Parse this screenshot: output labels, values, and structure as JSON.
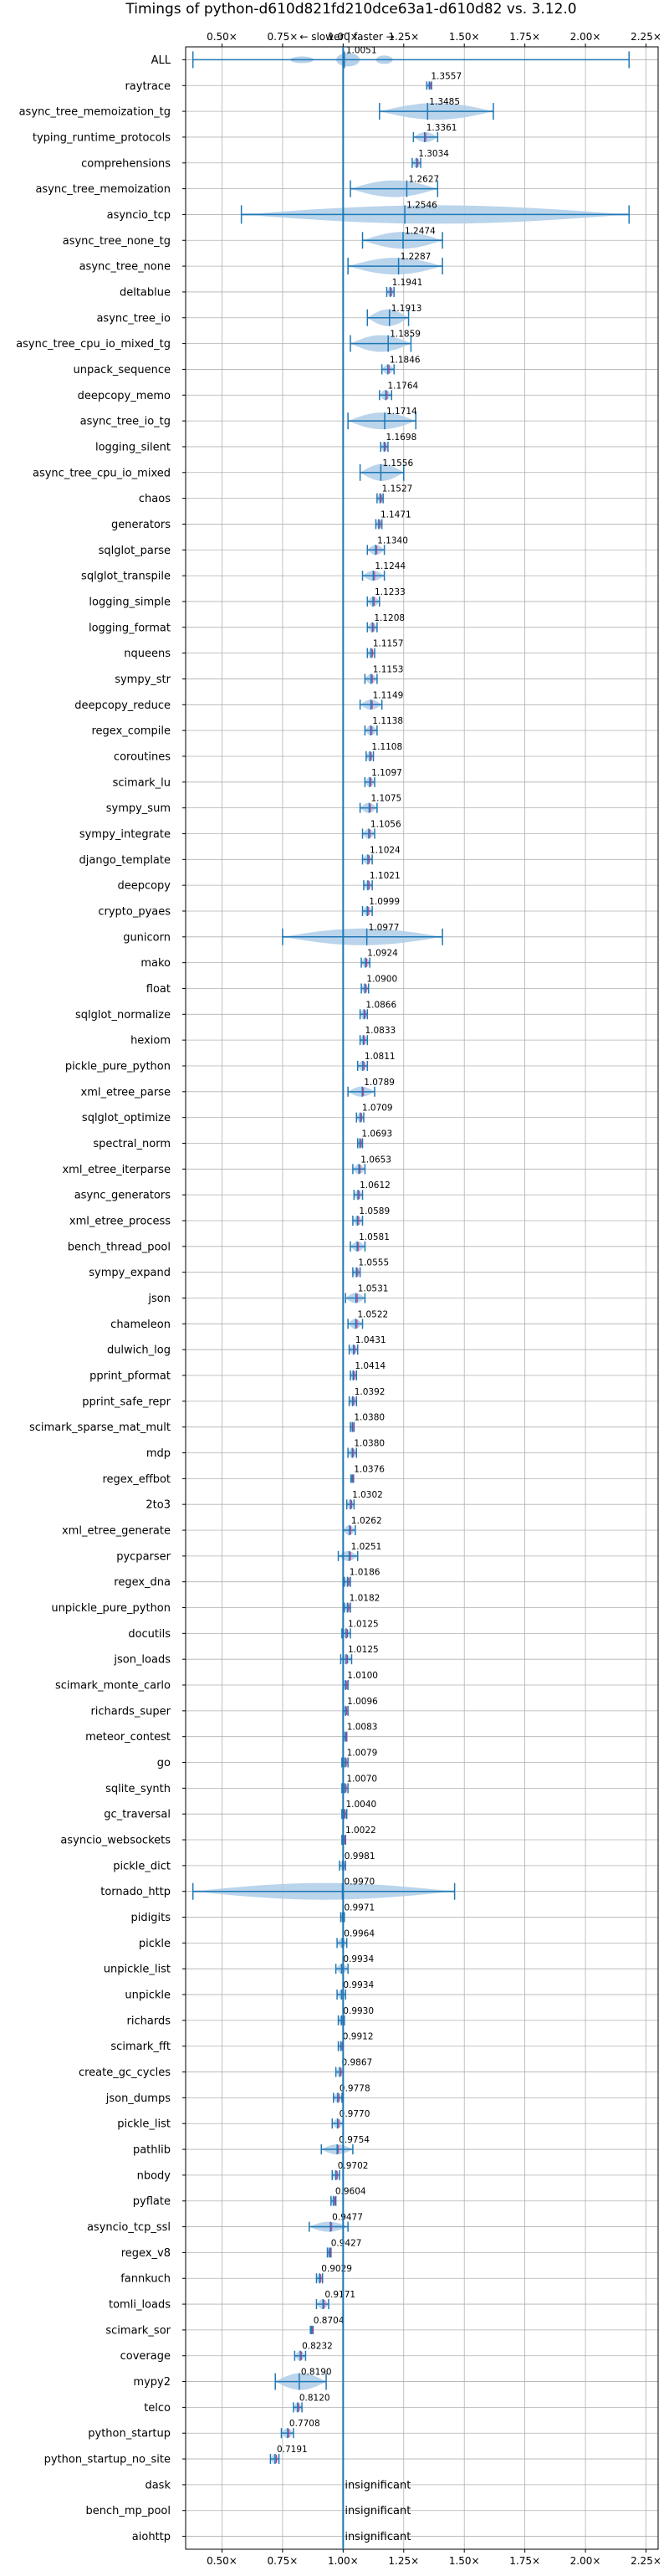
{
  "chart_data": {
    "type": "violin",
    "title": "Timings of python-d610d821fd210dce63a1-d610d82 vs. 3.12.0",
    "direction_label": "← slower | faster →",
    "xlim": [
      0.35,
      2.3
    ],
    "x_ticks": [
      0.5,
      0.75,
      1.0,
      1.25,
      1.5,
      1.75,
      2.0,
      2.25
    ],
    "x_tick_labels": [
      "0.50×",
      "0.75×",
      "1.00×",
      "1.25×",
      "1.50×",
      "1.75×",
      "2.00×",
      "2.25×"
    ],
    "reference_line": 1.0,
    "grid": true,
    "colors": {
      "violin": "#aecde8",
      "line": "#1f77b4",
      "median": "#d6277c",
      "grid": "#b0b0b0"
    },
    "benchmarks": [
      {
        "name": "ALL",
        "label": "1.0051",
        "value": 1.0051,
        "min": 0.38,
        "max": 2.18,
        "shape": "all"
      },
      {
        "name": "raytrace",
        "label": "1.3557",
        "value": 1.3557,
        "min": 1.345,
        "max": 1.365,
        "shape": "narrow"
      },
      {
        "name": "async_tree_memoization_tg",
        "label": "1.3485",
        "value": 1.3485,
        "min": 1.15,
        "max": 1.62,
        "shape": "wide"
      },
      {
        "name": "typing_runtime_protocols",
        "label": "1.3361",
        "value": 1.3361,
        "min": 1.29,
        "max": 1.39,
        "shape": "box"
      },
      {
        "name": "comprehensions",
        "label": "1.3034",
        "value": 1.3034,
        "min": 1.285,
        "max": 1.32,
        "shape": "box"
      },
      {
        "name": "async_tree_memoization",
        "label": "1.2627",
        "value": 1.2627,
        "min": 1.03,
        "max": 1.39,
        "shape": "wide"
      },
      {
        "name": "asyncio_tcp",
        "label": "1.2546",
        "value": 1.2546,
        "min": 0.58,
        "max": 2.18,
        "shape": "tcp"
      },
      {
        "name": "async_tree_none_tg",
        "label": "1.2474",
        "value": 1.2474,
        "min": 1.08,
        "max": 1.41,
        "shape": "wide"
      },
      {
        "name": "async_tree_none",
        "label": "1.2287",
        "value": 1.2287,
        "min": 1.02,
        "max": 1.41,
        "shape": "wide"
      },
      {
        "name": "deltablue",
        "label": "1.1941",
        "value": 1.1941,
        "min": 1.18,
        "max": 1.21,
        "shape": "box"
      },
      {
        "name": "async_tree_io",
        "label": "1.1913",
        "value": 1.1913,
        "min": 1.1,
        "max": 1.27,
        "shape": "wide"
      },
      {
        "name": "async_tree_cpu_io_mixed_tg",
        "label": "1.1859",
        "value": 1.1859,
        "min": 1.03,
        "max": 1.28,
        "shape": "wide"
      },
      {
        "name": "unpack_sequence",
        "label": "1.1846",
        "value": 1.1846,
        "min": 1.16,
        "max": 1.21,
        "shape": "box"
      },
      {
        "name": "deepcopy_memo",
        "label": "1.1764",
        "value": 1.1764,
        "min": 1.15,
        "max": 1.2,
        "shape": "box"
      },
      {
        "name": "async_tree_io_tg",
        "label": "1.1714",
        "value": 1.1714,
        "min": 1.02,
        "max": 1.3,
        "shape": "wide"
      },
      {
        "name": "logging_silent",
        "label": "1.1698",
        "value": 1.1698,
        "min": 1.155,
        "max": 1.185,
        "shape": "box"
      },
      {
        "name": "async_tree_cpu_io_mixed",
        "label": "1.1556",
        "value": 1.1556,
        "min": 1.07,
        "max": 1.25,
        "shape": "wide"
      },
      {
        "name": "chaos",
        "label": "1.1527",
        "value": 1.1527,
        "min": 1.14,
        "max": 1.165,
        "shape": "box"
      },
      {
        "name": "generators",
        "label": "1.1471",
        "value": 1.1471,
        "min": 1.135,
        "max": 1.16,
        "shape": "box"
      },
      {
        "name": "sqlglot_parse",
        "label": "1.1340",
        "value": 1.134,
        "min": 1.1,
        "max": 1.17,
        "shape": "box"
      },
      {
        "name": "sqlglot_transpile",
        "label": "1.1244",
        "value": 1.1244,
        "min": 1.08,
        "max": 1.17,
        "shape": "box"
      },
      {
        "name": "logging_simple",
        "label": "1.1233",
        "value": 1.1233,
        "min": 1.1,
        "max": 1.15,
        "shape": "box"
      },
      {
        "name": "logging_format",
        "label": "1.1208",
        "value": 1.1208,
        "min": 1.1,
        "max": 1.14,
        "shape": "box"
      },
      {
        "name": "nqueens",
        "label": "1.1157",
        "value": 1.1157,
        "min": 1.1,
        "max": 1.13,
        "shape": "box"
      },
      {
        "name": "sympy_str",
        "label": "1.1153",
        "value": 1.1153,
        "min": 1.09,
        "max": 1.14,
        "shape": "box"
      },
      {
        "name": "deepcopy_reduce",
        "label": "1.1149",
        "value": 1.1149,
        "min": 1.07,
        "max": 1.16,
        "shape": "box"
      },
      {
        "name": "regex_compile",
        "label": "1.1138",
        "value": 1.1138,
        "min": 1.09,
        "max": 1.14,
        "shape": "box"
      },
      {
        "name": "coroutines",
        "label": "1.1108",
        "value": 1.1108,
        "min": 1.095,
        "max": 1.125,
        "shape": "box"
      },
      {
        "name": "scimark_lu",
        "label": "1.1097",
        "value": 1.1097,
        "min": 1.09,
        "max": 1.13,
        "shape": "box"
      },
      {
        "name": "sympy_sum",
        "label": "1.1075",
        "value": 1.1075,
        "min": 1.07,
        "max": 1.14,
        "shape": "box"
      },
      {
        "name": "sympy_integrate",
        "label": "1.1056",
        "value": 1.1056,
        "min": 1.08,
        "max": 1.13,
        "shape": "box"
      },
      {
        "name": "django_template",
        "label": "1.1024",
        "value": 1.1024,
        "min": 1.08,
        "max": 1.12,
        "shape": "box"
      },
      {
        "name": "deepcopy",
        "label": "1.1021",
        "value": 1.1021,
        "min": 1.085,
        "max": 1.12,
        "shape": "box"
      },
      {
        "name": "crypto_pyaes",
        "label": "1.0999",
        "value": 1.0999,
        "min": 1.08,
        "max": 1.12,
        "shape": "box"
      },
      {
        "name": "gunicorn",
        "label": "1.0977",
        "value": 1.0977,
        "min": 0.75,
        "max": 1.41,
        "shape": "wide"
      },
      {
        "name": "mako",
        "label": "1.0924",
        "value": 1.0924,
        "min": 1.075,
        "max": 1.11,
        "shape": "box"
      },
      {
        "name": "float",
        "label": "1.0900",
        "value": 1.09,
        "min": 1.075,
        "max": 1.105,
        "shape": "box"
      },
      {
        "name": "sqlglot_normalize",
        "label": "1.0866",
        "value": 1.0866,
        "min": 1.07,
        "max": 1.1,
        "shape": "box"
      },
      {
        "name": "hexiom",
        "label": "1.0833",
        "value": 1.0833,
        "min": 1.07,
        "max": 1.1,
        "shape": "box"
      },
      {
        "name": "pickle_pure_python",
        "label": "1.0811",
        "value": 1.0811,
        "min": 1.06,
        "max": 1.1,
        "shape": "box"
      },
      {
        "name": "xml_etree_parse",
        "label": "1.0789",
        "value": 1.0789,
        "min": 1.02,
        "max": 1.13,
        "shape": "box"
      },
      {
        "name": "sqlglot_optimize",
        "label": "1.0709",
        "value": 1.0709,
        "min": 1.055,
        "max": 1.085,
        "shape": "box"
      },
      {
        "name": "spectral_norm",
        "label": "1.0693",
        "value": 1.0693,
        "min": 1.06,
        "max": 1.08,
        "shape": "box"
      },
      {
        "name": "xml_etree_iterparse",
        "label": "1.0653",
        "value": 1.0653,
        "min": 1.04,
        "max": 1.09,
        "shape": "box"
      },
      {
        "name": "async_generators",
        "label": "1.0612",
        "value": 1.0612,
        "min": 1.045,
        "max": 1.08,
        "shape": "box"
      },
      {
        "name": "xml_etree_process",
        "label": "1.0589",
        "value": 1.0589,
        "min": 1.04,
        "max": 1.08,
        "shape": "box"
      },
      {
        "name": "bench_thread_pool",
        "label": "1.0581",
        "value": 1.0581,
        "min": 1.03,
        "max": 1.09,
        "shape": "box"
      },
      {
        "name": "sympy_expand",
        "label": "1.0555",
        "value": 1.0555,
        "min": 1.04,
        "max": 1.07,
        "shape": "box"
      },
      {
        "name": "json",
        "label": "1.0531",
        "value": 1.0531,
        "min": 1.01,
        "max": 1.09,
        "shape": "box"
      },
      {
        "name": "chameleon",
        "label": "1.0522",
        "value": 1.0522,
        "min": 1.02,
        "max": 1.08,
        "shape": "box"
      },
      {
        "name": "dulwich_log",
        "label": "1.0431",
        "value": 1.0431,
        "min": 1.025,
        "max": 1.06,
        "shape": "box"
      },
      {
        "name": "pprint_pformat",
        "label": "1.0414",
        "value": 1.0414,
        "min": 1.03,
        "max": 1.055,
        "shape": "box"
      },
      {
        "name": "pprint_safe_repr",
        "label": "1.0392",
        "value": 1.0392,
        "min": 1.025,
        "max": 1.055,
        "shape": "box"
      },
      {
        "name": "scimark_sparse_mat_mult",
        "label": "1.0380",
        "value": 1.038,
        "min": 1.03,
        "max": 1.045,
        "shape": "box"
      },
      {
        "name": "mdp",
        "label": "1.0380",
        "value": 1.038,
        "min": 1.02,
        "max": 1.055,
        "shape": "box"
      },
      {
        "name": "regex_effbot",
        "label": "1.0376",
        "value": 1.0376,
        "min": 1.032,
        "max": 1.043,
        "shape": "narrow"
      },
      {
        "name": "2to3",
        "label": "1.0302",
        "value": 1.0302,
        "min": 1.015,
        "max": 1.045,
        "shape": "box"
      },
      {
        "name": "xml_etree_generate",
        "label": "1.0262",
        "value": 1.0262,
        "min": 1.0,
        "max": 1.05,
        "shape": "box"
      },
      {
        "name": "pycparser",
        "label": "1.0251",
        "value": 1.0251,
        "min": 0.98,
        "max": 1.06,
        "shape": "box"
      },
      {
        "name": "regex_dna",
        "label": "1.0186",
        "value": 1.0186,
        "min": 1.005,
        "max": 1.03,
        "shape": "box"
      },
      {
        "name": "unpickle_pure_python",
        "label": "1.0182",
        "value": 1.0182,
        "min": 1.005,
        "max": 1.03,
        "shape": "box"
      },
      {
        "name": "docutils",
        "label": "1.0125",
        "value": 1.0125,
        "min": 0.995,
        "max": 1.03,
        "shape": "box"
      },
      {
        "name": "json_loads",
        "label": "1.0125",
        "value": 1.0125,
        "min": 0.99,
        "max": 1.035,
        "shape": "box"
      },
      {
        "name": "scimark_monte_carlo",
        "label": "1.0100",
        "value": 1.01,
        "min": 1.0,
        "max": 1.02,
        "shape": "box"
      },
      {
        "name": "richards_super",
        "label": "1.0096",
        "value": 1.0096,
        "min": 1.0,
        "max": 1.02,
        "shape": "box"
      },
      {
        "name": "meteor_contest",
        "label": "1.0083",
        "value": 1.0083,
        "min": 1.0,
        "max": 1.015,
        "shape": "box"
      },
      {
        "name": "go",
        "label": "1.0079",
        "value": 1.0079,
        "min": 0.995,
        "max": 1.02,
        "shape": "box"
      },
      {
        "name": "sqlite_synth",
        "label": "1.0070",
        "value": 1.007,
        "min": 0.995,
        "max": 1.02,
        "shape": "box"
      },
      {
        "name": "gc_traversal",
        "label": "1.0040",
        "value": 1.004,
        "min": 0.995,
        "max": 1.015,
        "shape": "box"
      },
      {
        "name": "asyncio_websockets",
        "label": "1.0022",
        "value": 1.0022,
        "min": 0.995,
        "max": 1.01,
        "shape": "box"
      },
      {
        "name": "pickle_dict",
        "label": "0.9981",
        "value": 0.9981,
        "min": 0.985,
        "max": 1.01,
        "shape": "box"
      },
      {
        "name": "tornado_http",
        "label": "0.9970",
        "value": 0.997,
        "min": 0.38,
        "max": 1.46,
        "shape": "wide"
      },
      {
        "name": "pidigits",
        "label": "0.9971",
        "value": 0.9971,
        "min": 0.99,
        "max": 1.005,
        "shape": "box"
      },
      {
        "name": "pickle",
        "label": "0.9964",
        "value": 0.9964,
        "min": 0.975,
        "max": 1.015,
        "shape": "box"
      },
      {
        "name": "unpickle_list",
        "label": "0.9934",
        "value": 0.9934,
        "min": 0.97,
        "max": 1.02,
        "shape": "box"
      },
      {
        "name": "unpickle",
        "label": "0.9934",
        "value": 0.9934,
        "min": 0.975,
        "max": 1.01,
        "shape": "box"
      },
      {
        "name": "richards",
        "label": "0.9930",
        "value": 0.993,
        "min": 0.98,
        "max": 1.005,
        "shape": "box"
      },
      {
        "name": "scimark_fft",
        "label": "0.9912",
        "value": 0.9912,
        "min": 0.98,
        "max": 1.0,
        "shape": "box"
      },
      {
        "name": "create_gc_cycles",
        "label": "0.9867",
        "value": 0.9867,
        "min": 0.97,
        "max": 1.0,
        "shape": "box"
      },
      {
        "name": "json_dumps",
        "label": "0.9778",
        "value": 0.9778,
        "min": 0.96,
        "max": 0.995,
        "shape": "box"
      },
      {
        "name": "pickle_list",
        "label": "0.9770",
        "value": 0.977,
        "min": 0.955,
        "max": 1.0,
        "shape": "box"
      },
      {
        "name": "pathlib",
        "label": "0.9754",
        "value": 0.9754,
        "min": 0.91,
        "max": 1.04,
        "shape": "box"
      },
      {
        "name": "nbody",
        "label": "0.9702",
        "value": 0.9702,
        "min": 0.955,
        "max": 0.985,
        "shape": "box"
      },
      {
        "name": "pyflate",
        "label": "0.9604",
        "value": 0.9604,
        "min": 0.95,
        "max": 0.97,
        "shape": "box"
      },
      {
        "name": "asyncio_tcp_ssl",
        "label": "0.9477",
        "value": 0.9477,
        "min": 0.86,
        "max": 1.02,
        "shape": "box"
      },
      {
        "name": "regex_v8",
        "label": "0.9427",
        "value": 0.9427,
        "min": 0.935,
        "max": 0.95,
        "shape": "box"
      },
      {
        "name": "fannkuch",
        "label": "0.9029",
        "value": 0.9029,
        "min": 0.89,
        "max": 0.915,
        "shape": "box"
      },
      {
        "name": "tomli_loads",
        "label": "0.9171",
        "value": 0.9171,
        "min": 0.89,
        "max": 0.94,
        "shape": "box"
      },
      {
        "name": "scimark_sor",
        "label": "0.8704",
        "value": 0.8704,
        "min": 0.865,
        "max": 0.876,
        "shape": "narrow"
      },
      {
        "name": "coverage",
        "label": "0.8232",
        "value": 0.8232,
        "min": 0.8,
        "max": 0.845,
        "shape": "box"
      },
      {
        "name": "mypy2",
        "label": "0.8190",
        "value": 0.819,
        "min": 0.72,
        "max": 0.93,
        "shape": "wide"
      },
      {
        "name": "telco",
        "label": "0.8120",
        "value": 0.812,
        "min": 0.795,
        "max": 0.83,
        "shape": "box"
      },
      {
        "name": "python_startup",
        "label": "0.7708",
        "value": 0.7708,
        "min": 0.745,
        "max": 0.795,
        "shape": "box"
      },
      {
        "name": "python_startup_no_site",
        "label": "0.7191",
        "value": 0.7191,
        "min": 0.7,
        "max": 0.735,
        "shape": "box"
      },
      {
        "name": "dask",
        "label": "insignificant",
        "value": null,
        "min": null,
        "max": null,
        "shape": "none"
      },
      {
        "name": "bench_mp_pool",
        "label": "insignificant",
        "value": null,
        "min": null,
        "max": null,
        "shape": "none"
      },
      {
        "name": "aiohttp",
        "label": "insignificant",
        "value": null,
        "min": null,
        "max": null,
        "shape": "none"
      }
    ]
  }
}
